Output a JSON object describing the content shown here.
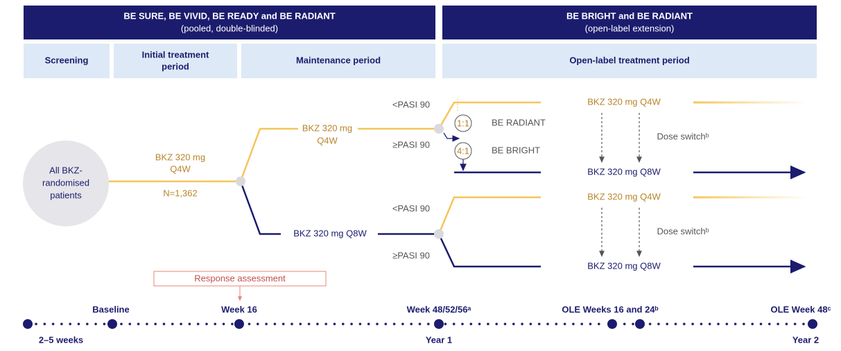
{
  "header": {
    "pooled": {
      "title": "BE SURE, BE VIVID, BE READY and BE RADIANT",
      "subtitle": "(pooled, double-blinded)"
    },
    "extension": {
      "title": "BE BRIGHT and BE RADIANT",
      "subtitle": "(open-label extension)"
    }
  },
  "periods": [
    {
      "lines": [
        "Screening"
      ]
    },
    {
      "lines": [
        "Initial treatment",
        "period"
      ]
    },
    {
      "lines": [
        "Maintenance period"
      ]
    },
    {
      "lines": [
        "Open-label treatment period"
      ]
    }
  ],
  "start_node": {
    "lines": [
      "All BKZ-",
      "randomised",
      "patients"
    ]
  },
  "initial_arm": {
    "lines": [
      "BKZ 320 mg",
      "Q4W"
    ],
    "n": "N=1,362"
  },
  "maintenance_arms": [
    {
      "lines": [
        "BKZ 320 mg",
        "Q4W"
      ]
    },
    {
      "lines": [
        "BKZ 320 mg Q8W"
      ]
    }
  ],
  "upper_split": {
    "low_response": "<PASI 90",
    "high_response": "≥PASI 90",
    "ratios": [
      {
        "ratio": "1:1",
        "study": "BE RADIANT"
      },
      {
        "ratio": "4:1",
        "study": "BE BRIGHT"
      }
    ],
    "arms": [
      "BKZ 320 mg Q4W",
      "BKZ 320 mg Q8W"
    ],
    "dose_switch": "Dose switchᵇ"
  },
  "lower_split": {
    "low_response": "<PASI 90",
    "high_response": "≥PASI 90",
    "arms": [
      "BKZ 320 mg Q4W",
      "BKZ 320 mg Q8W"
    ],
    "dose_switch": "Dose switchᵇ"
  },
  "response_assessment": "Response assessment",
  "timeline": {
    "above": [
      "Baseline",
      "Week 16",
      "Week 48/52/56ᵃ",
      "OLE Weeks 16 and 24ᵇ",
      "OLE Week 48ᶜ"
    ],
    "below": [
      "2–5 weeks",
      "Year 1",
      "Year 2"
    ]
  }
}
